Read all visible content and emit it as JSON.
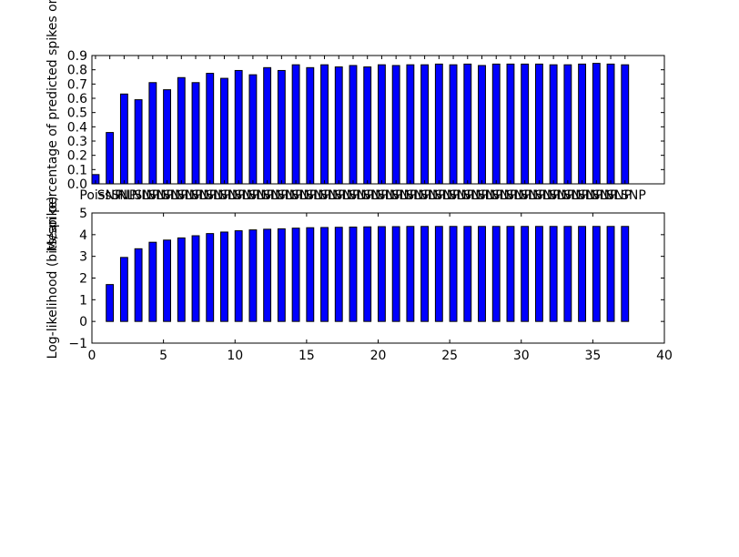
{
  "chart_data": [
    {
      "type": "bar",
      "ylabel": "Mean percentage of predicted spikes on t",
      "xlim": [
        0,
        40
      ],
      "ylim": [
        0,
        0.9
      ],
      "yticks": [
        "0.0",
        "0.1",
        "0.2",
        "0.3",
        "0.4",
        "0.5",
        "0.6",
        "0.7",
        "0.8",
        "0.9"
      ],
      "xticklabels": [
        "Poiss",
        "SNP",
        "SNP",
        "NLSNP",
        "NLSNP",
        "NLSNP",
        "NLSNP",
        "NLSNP",
        "NLSNP",
        "NLSNP",
        "NLSNP",
        "NLSNP",
        "NLSNP",
        "NLSNP",
        "NLSNP",
        "NLSNP",
        "NLSNP",
        "NLSNP",
        "NLSNP",
        "NLSNP",
        "NLSNP",
        "NLSNP",
        "NLSNP",
        "NLSNP",
        "NLSNP",
        "NLSNP",
        "NLSNP",
        "NLSNP",
        "NLSNP",
        "NLSNP",
        "NLSNP",
        "NLSNP",
        "NLSNP",
        "NLSNP",
        "NLSNP",
        "NLSNP",
        "NLSNP",
        "NLSNP"
      ],
      "x": [
        0,
        1,
        2,
        3,
        4,
        5,
        6,
        7,
        8,
        9,
        10,
        11,
        12,
        13,
        14,
        15,
        16,
        17,
        18,
        19,
        20,
        21,
        22,
        23,
        24,
        25,
        26,
        27,
        28,
        29,
        30,
        31,
        32,
        33,
        34,
        35,
        36,
        37
      ],
      "values": [
        0.065,
        0.36,
        0.63,
        0.59,
        0.71,
        0.66,
        0.745,
        0.71,
        0.775,
        0.74,
        0.795,
        0.765,
        0.815,
        0.795,
        0.835,
        0.815,
        0.835,
        0.82,
        0.83,
        0.82,
        0.835,
        0.83,
        0.835,
        0.835,
        0.84,
        0.835,
        0.84,
        0.83,
        0.84,
        0.84,
        0.84,
        0.84,
        0.835,
        0.835,
        0.84,
        0.845,
        0.84,
        0.835
      ],
      "color": "#0000ff"
    },
    {
      "type": "bar",
      "ylabel": "Log-likelihood (bits/spike)",
      "xlim": [
        0,
        40
      ],
      "ylim": [
        -1,
        5
      ],
      "yticks": [
        "−1",
        "0",
        "1",
        "2",
        "3",
        "4",
        "5"
      ],
      "xticks": [
        "0",
        "5",
        "10",
        "15",
        "20",
        "25",
        "30",
        "35",
        "40"
      ],
      "x": [
        1,
        2,
        3,
        4,
        5,
        6,
        7,
        8,
        9,
        10,
        11,
        12,
        13,
        14,
        15,
        16,
        17,
        18,
        19,
        20,
        21,
        22,
        23,
        24,
        25,
        26,
        27,
        28,
        29,
        30,
        31,
        32,
        33,
        34,
        35,
        36,
        37
      ],
      "values": [
        1.7,
        2.95,
        3.35,
        3.65,
        3.75,
        3.85,
        3.95,
        4.05,
        4.12,
        4.18,
        4.22,
        4.25,
        4.27,
        4.3,
        4.32,
        4.33,
        4.34,
        4.35,
        4.36,
        4.37,
        4.37,
        4.38,
        4.38,
        4.38,
        4.38,
        4.38,
        4.38,
        4.38,
        4.38,
        4.38,
        4.38,
        4.38,
        4.38,
        4.38,
        4.38,
        4.38,
        4.38
      ],
      "color": "#0000ff"
    }
  ]
}
